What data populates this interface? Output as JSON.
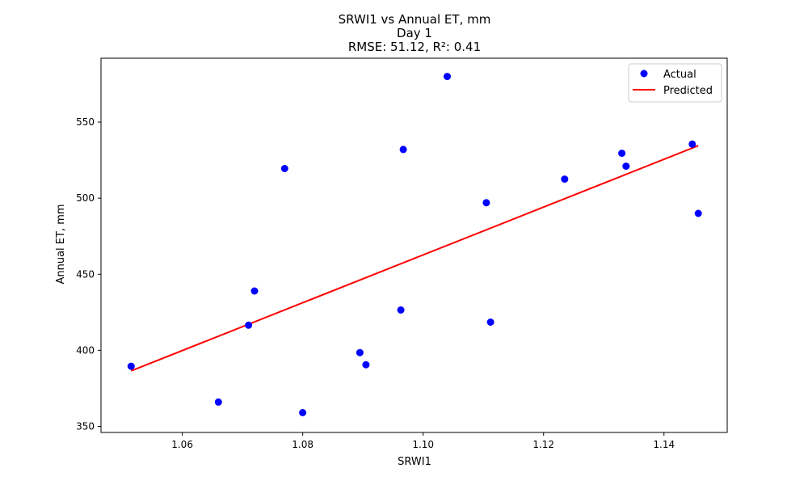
{
  "chart_data": {
    "type": "scatter",
    "title_lines": [
      "SRWI1 vs Annual ET, mm",
      "Day 1",
      "RMSE: 51.12, R²: 0.41"
    ],
    "xlabel": "SRWI1",
    "ylabel": "Annual ET, mm",
    "xlim": [
      1.0465,
      1.1505
    ],
    "ylim": [
      346,
      592
    ],
    "xticks": [
      1.06,
      1.08,
      1.1,
      1.12,
      1.14
    ],
    "xtick_labels": [
      "1.06",
      "1.08",
      "1.10",
      "1.12",
      "1.14"
    ],
    "yticks": [
      350,
      400,
      450,
      500,
      550
    ],
    "ytick_labels": [
      "350",
      "400",
      "450",
      "500",
      "550"
    ],
    "grid": false,
    "legend_position": "top-right",
    "series": [
      {
        "name": "Actual",
        "kind": "points",
        "color": "#0000ff",
        "points": [
          {
            "x": 1.0515,
            "y": 389.5
          },
          {
            "x": 1.066,
            "y": 366
          },
          {
            "x": 1.071,
            "y": 416.5
          },
          {
            "x": 1.072,
            "y": 439
          },
          {
            "x": 1.077,
            "y": 519.5
          },
          {
            "x": 1.08,
            "y": 359
          },
          {
            "x": 1.0895,
            "y": 398.5
          },
          {
            "x": 1.0905,
            "y": 390.5
          },
          {
            "x": 1.0963,
            "y": 426.5
          },
          {
            "x": 1.0967,
            "y": 532
          },
          {
            "x": 1.104,
            "y": 580
          },
          {
            "x": 1.1105,
            "y": 497
          },
          {
            "x": 1.1112,
            "y": 418.5
          },
          {
            "x": 1.1235,
            "y": 512.5
          },
          {
            "x": 1.133,
            "y": 529.5
          },
          {
            "x": 1.1337,
            "y": 521
          },
          {
            "x": 1.1447,
            "y": 535.5
          },
          {
            "x": 1.1457,
            "y": 490
          }
        ]
      },
      {
        "name": "Predicted",
        "kind": "line",
        "color": "#ff0000",
        "points": [
          {
            "x": 1.0515,
            "y": 386.5
          },
          {
            "x": 1.1457,
            "y": 534.5
          }
        ]
      }
    ]
  }
}
